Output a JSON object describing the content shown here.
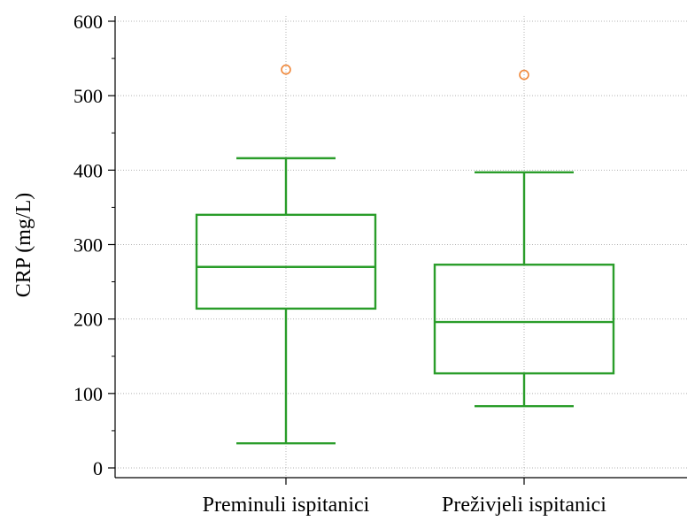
{
  "chart_data": {
    "type": "box",
    "ylabel": "CRP (mg/L)",
    "xlabel": "",
    "ylim": [
      0,
      600
    ],
    "y_ticks": [
      0,
      100,
      200,
      300,
      400,
      500,
      600
    ],
    "y_minor_step": 50,
    "grid": true,
    "categories": [
      "Preminuli ispitanici",
      "Preživjeli ispitanici"
    ],
    "boxes": [
      {
        "category": "Preminuli ispitanici",
        "whisker_low": 33,
        "q1": 214,
        "median": 270,
        "q3": 340,
        "whisker_high": 416,
        "outliers": [
          535
        ]
      },
      {
        "category": "Preživjeli ispitanici",
        "whisker_low": 83,
        "q1": 127,
        "median": 196,
        "q3": 273,
        "whisker_high": 397,
        "outliers": [
          528
        ]
      }
    ],
    "colors": {
      "box": "#2a9d2a",
      "outlier": "#f0883a",
      "grid": "#b4b4b4",
      "axis": "#000000"
    }
  }
}
